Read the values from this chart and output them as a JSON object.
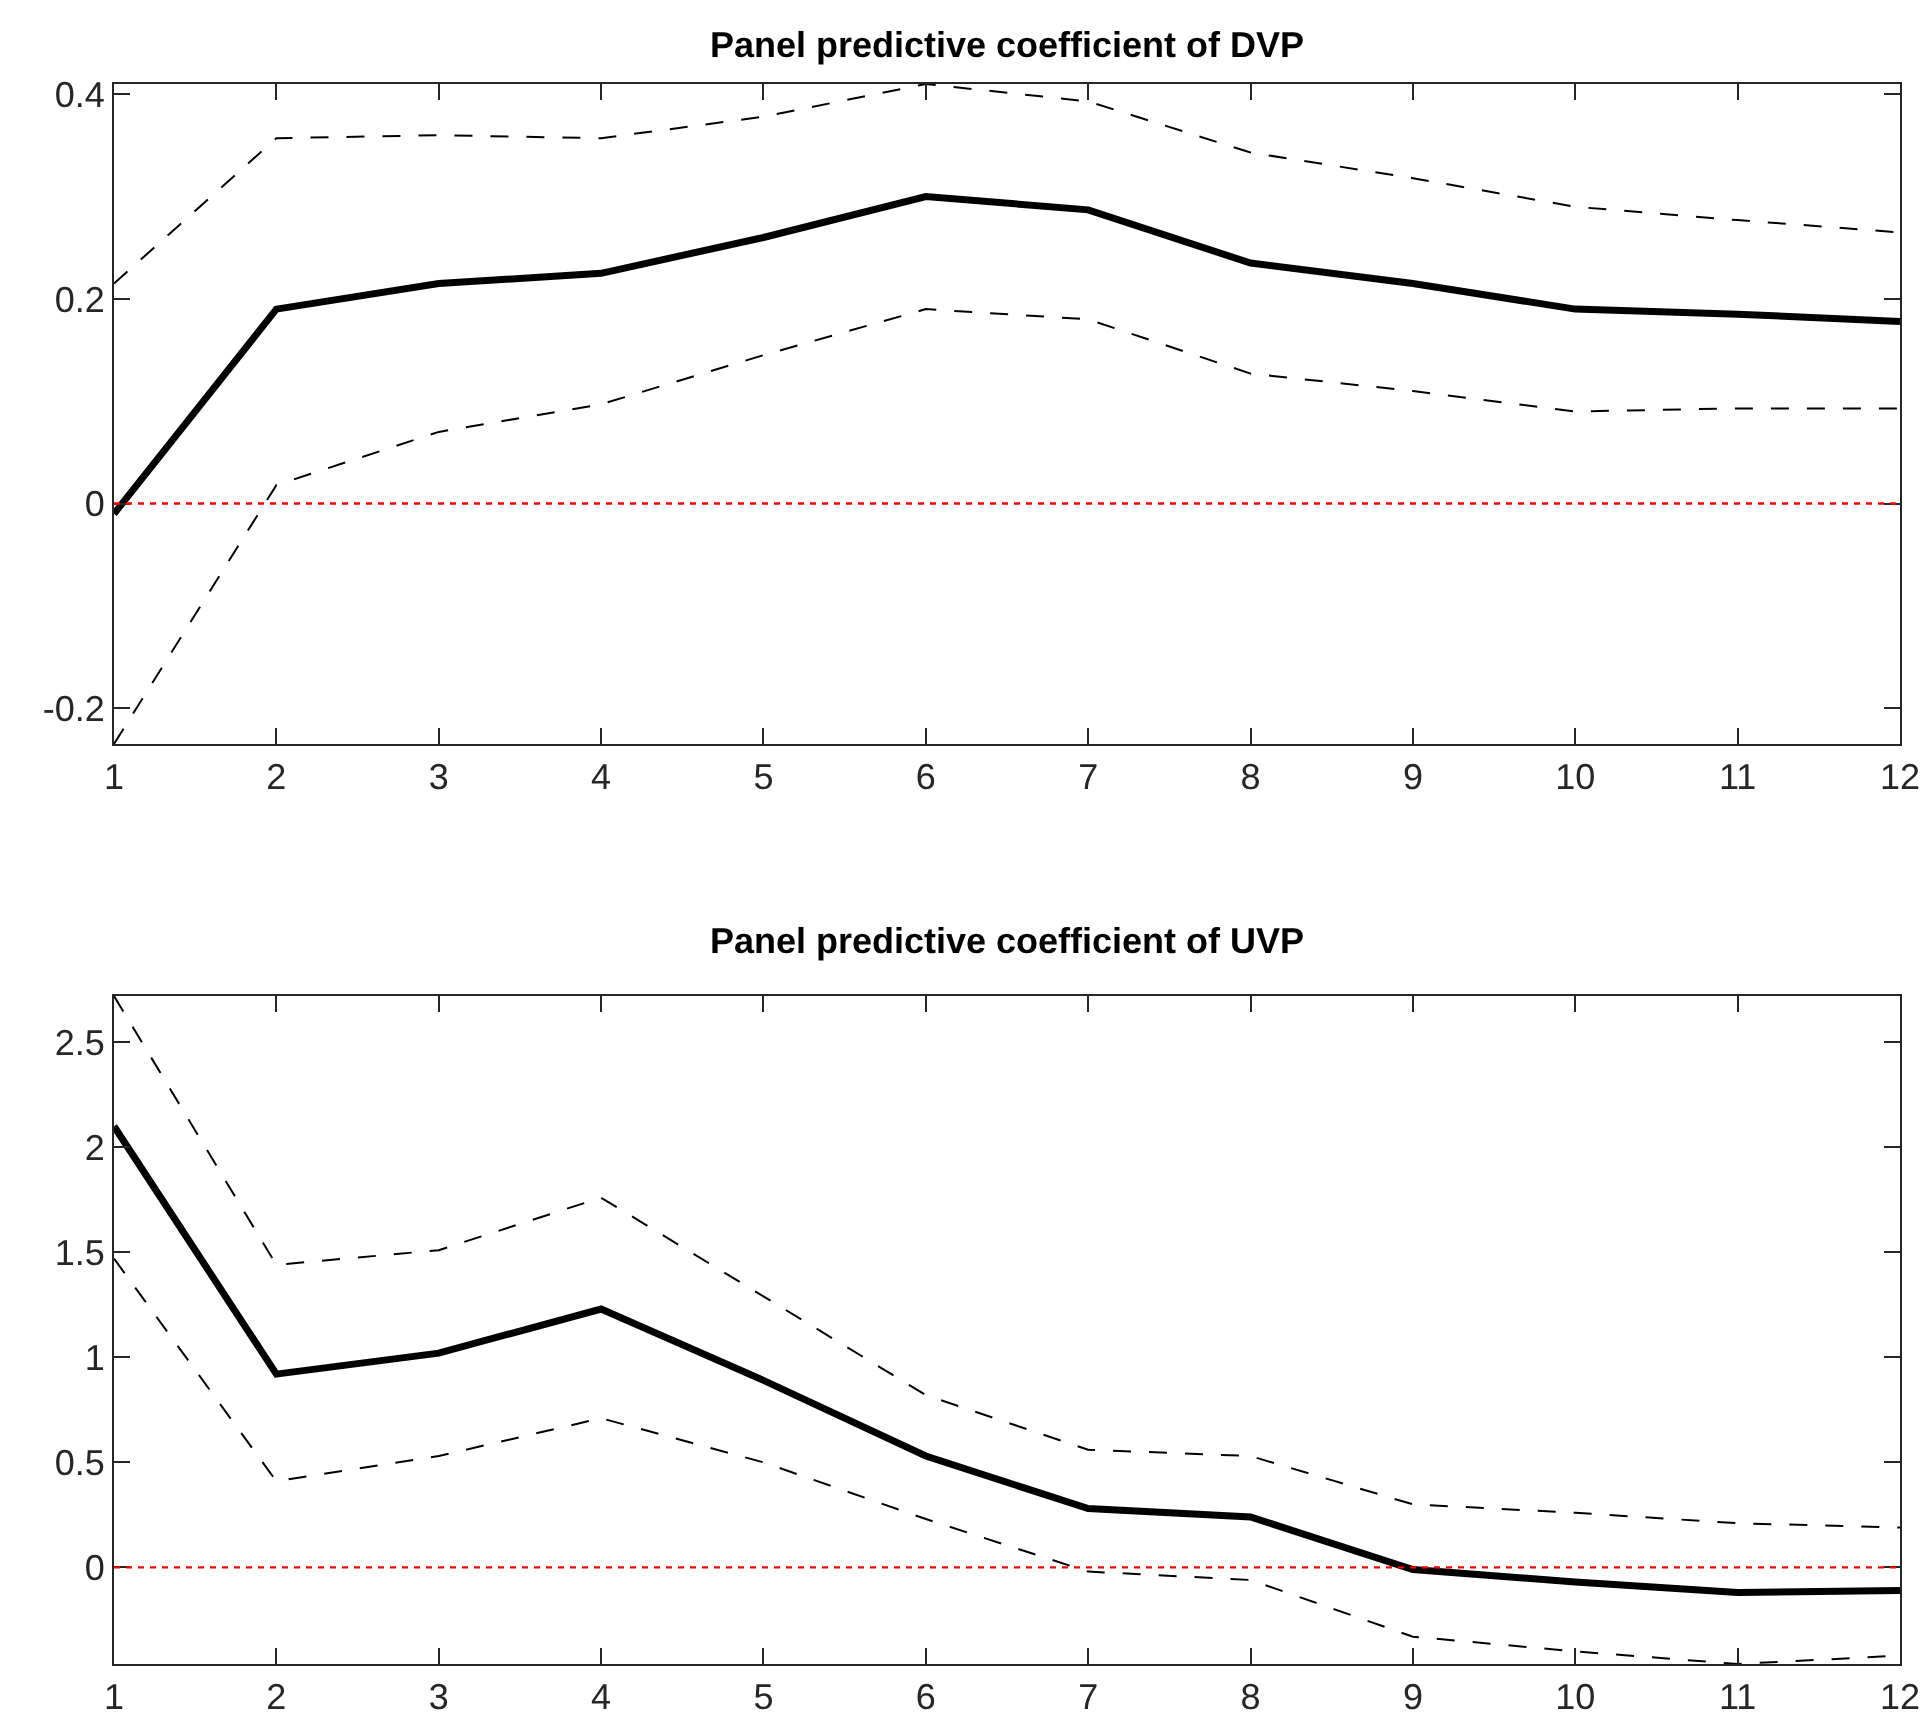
{
  "chart_data": [
    {
      "type": "line",
      "title": "Panel predictive coefficient of DVP",
      "x": [
        1,
        2,
        3,
        4,
        5,
        6,
        7,
        8,
        9,
        10,
        11,
        12
      ],
      "xlim": [
        1,
        12
      ],
      "xticks": [
        1,
        2,
        3,
        4,
        5,
        6,
        7,
        8,
        9,
        10,
        11,
        12
      ],
      "ylim": [
        -0.235,
        0.41
      ],
      "yticks": [
        -0.2,
        0,
        0.2,
        0.4
      ],
      "grid": false,
      "marker": "none",
      "series": [
        {
          "color": "#000000",
          "line_style": "solid",
          "values": [
            -0.01,
            0.19,
            0.215,
            0.225,
            0.26,
            0.3,
            0.287,
            0.235,
            0.215,
            0.19,
            0.185,
            0.178
          ]
        },
        {
          "color": "#000000",
          "line_style": "dashed",
          "values": [
            0.215,
            0.357,
            0.36,
            0.357,
            0.378,
            0.41,
            0.393,
            0.343,
            0.318,
            0.29,
            0.277,
            0.265
          ]
        },
        {
          "color": "#000000",
          "line_style": "dashed",
          "values": [
            -0.235,
            0.018,
            0.07,
            0.097,
            0.145,
            0.19,
            0.18,
            0.127,
            0.11,
            0.09,
            0.093,
            0.093
          ]
        }
      ],
      "ref_lines": [
        {
          "axis": "y",
          "value": 0,
          "color": "#ff0000",
          "line_style": "dotted"
        }
      ]
    },
    {
      "type": "line",
      "title": "Panel predictive coefficient of UVP",
      "x": [
        1,
        2,
        3,
        4,
        5,
        6,
        7,
        8,
        9,
        10,
        11,
        12
      ],
      "xlim": [
        1,
        12
      ],
      "xticks": [
        1,
        2,
        3,
        4,
        5,
        6,
        7,
        8,
        9,
        10,
        11,
        12
      ],
      "ylim": [
        -0.46,
        2.72
      ],
      "yticks": [
        0,
        0.5,
        1,
        1.5,
        2,
        2.5
      ],
      "grid": false,
      "marker": "none",
      "series": [
        {
          "color": "#000000",
          "line_style": "solid",
          "values": [
            2.1,
            0.92,
            1.02,
            1.23,
            0.89,
            0.53,
            0.28,
            0.24,
            -0.01,
            -0.07,
            -0.12,
            -0.11
          ]
        },
        {
          "color": "#000000",
          "line_style": "dashed",
          "values": [
            2.72,
            1.44,
            1.51,
            1.76,
            1.29,
            0.82,
            0.56,
            0.53,
            0.3,
            0.26,
            0.21,
            0.19
          ]
        },
        {
          "color": "#000000",
          "line_style": "dashed",
          "values": [
            1.47,
            0.41,
            0.53,
            0.71,
            0.5,
            0.23,
            -0.02,
            -0.06,
            -0.33,
            -0.4,
            -0.46,
            -0.42
          ]
        }
      ],
      "ref_lines": [
        {
          "axis": "y",
          "value": 0,
          "color": "#ff0000",
          "line_style": "dotted"
        }
      ]
    }
  ]
}
